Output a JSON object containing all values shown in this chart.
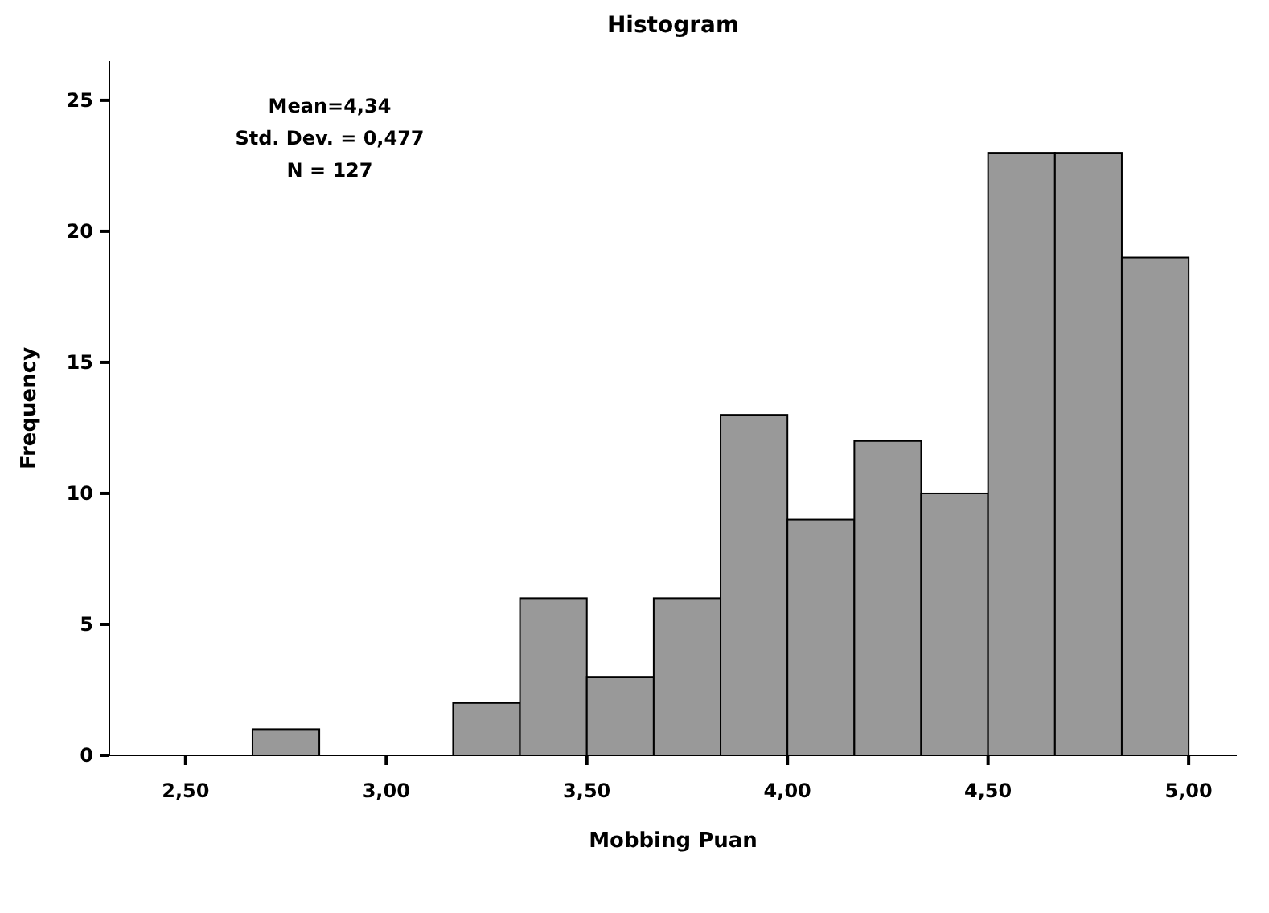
{
  "chart_data": {
    "type": "histogram",
    "title": "Histogram",
    "xlabel": "Mobbing Puan",
    "ylabel": "Frequency",
    "bins": [
      2.6667,
      2.8333,
      3.0,
      3.1667,
      3.3333,
      3.5,
      3.6667,
      3.8333,
      4.0,
      4.1667,
      4.3333,
      4.5,
      4.6667,
      4.8333,
      5.0
    ],
    "values": [
      1,
      0,
      0,
      2,
      6,
      3,
      6,
      13,
      9,
      12,
      10,
      23,
      23,
      19
    ],
    "color": "#999999",
    "xlim": [
      2.31,
      5.12
    ],
    "ylim": [
      0,
      26.5
    ],
    "xticks": [
      {
        "value": 2.5,
        "label": "2,50"
      },
      {
        "value": 3.0,
        "label": "3,00"
      },
      {
        "value": 3.5,
        "label": "3,50"
      },
      {
        "value": 4.0,
        "label": "4,00"
      },
      {
        "value": 4.5,
        "label": "4,50"
      },
      {
        "value": 5.0,
        "label": "5,00"
      }
    ],
    "yticks": [
      0,
      5,
      10,
      15,
      20,
      25
    ],
    "grid": false,
    "annotations": [
      "Mean=4,34",
      "Std. Dev. = 0,477",
      "N = 127"
    ]
  }
}
